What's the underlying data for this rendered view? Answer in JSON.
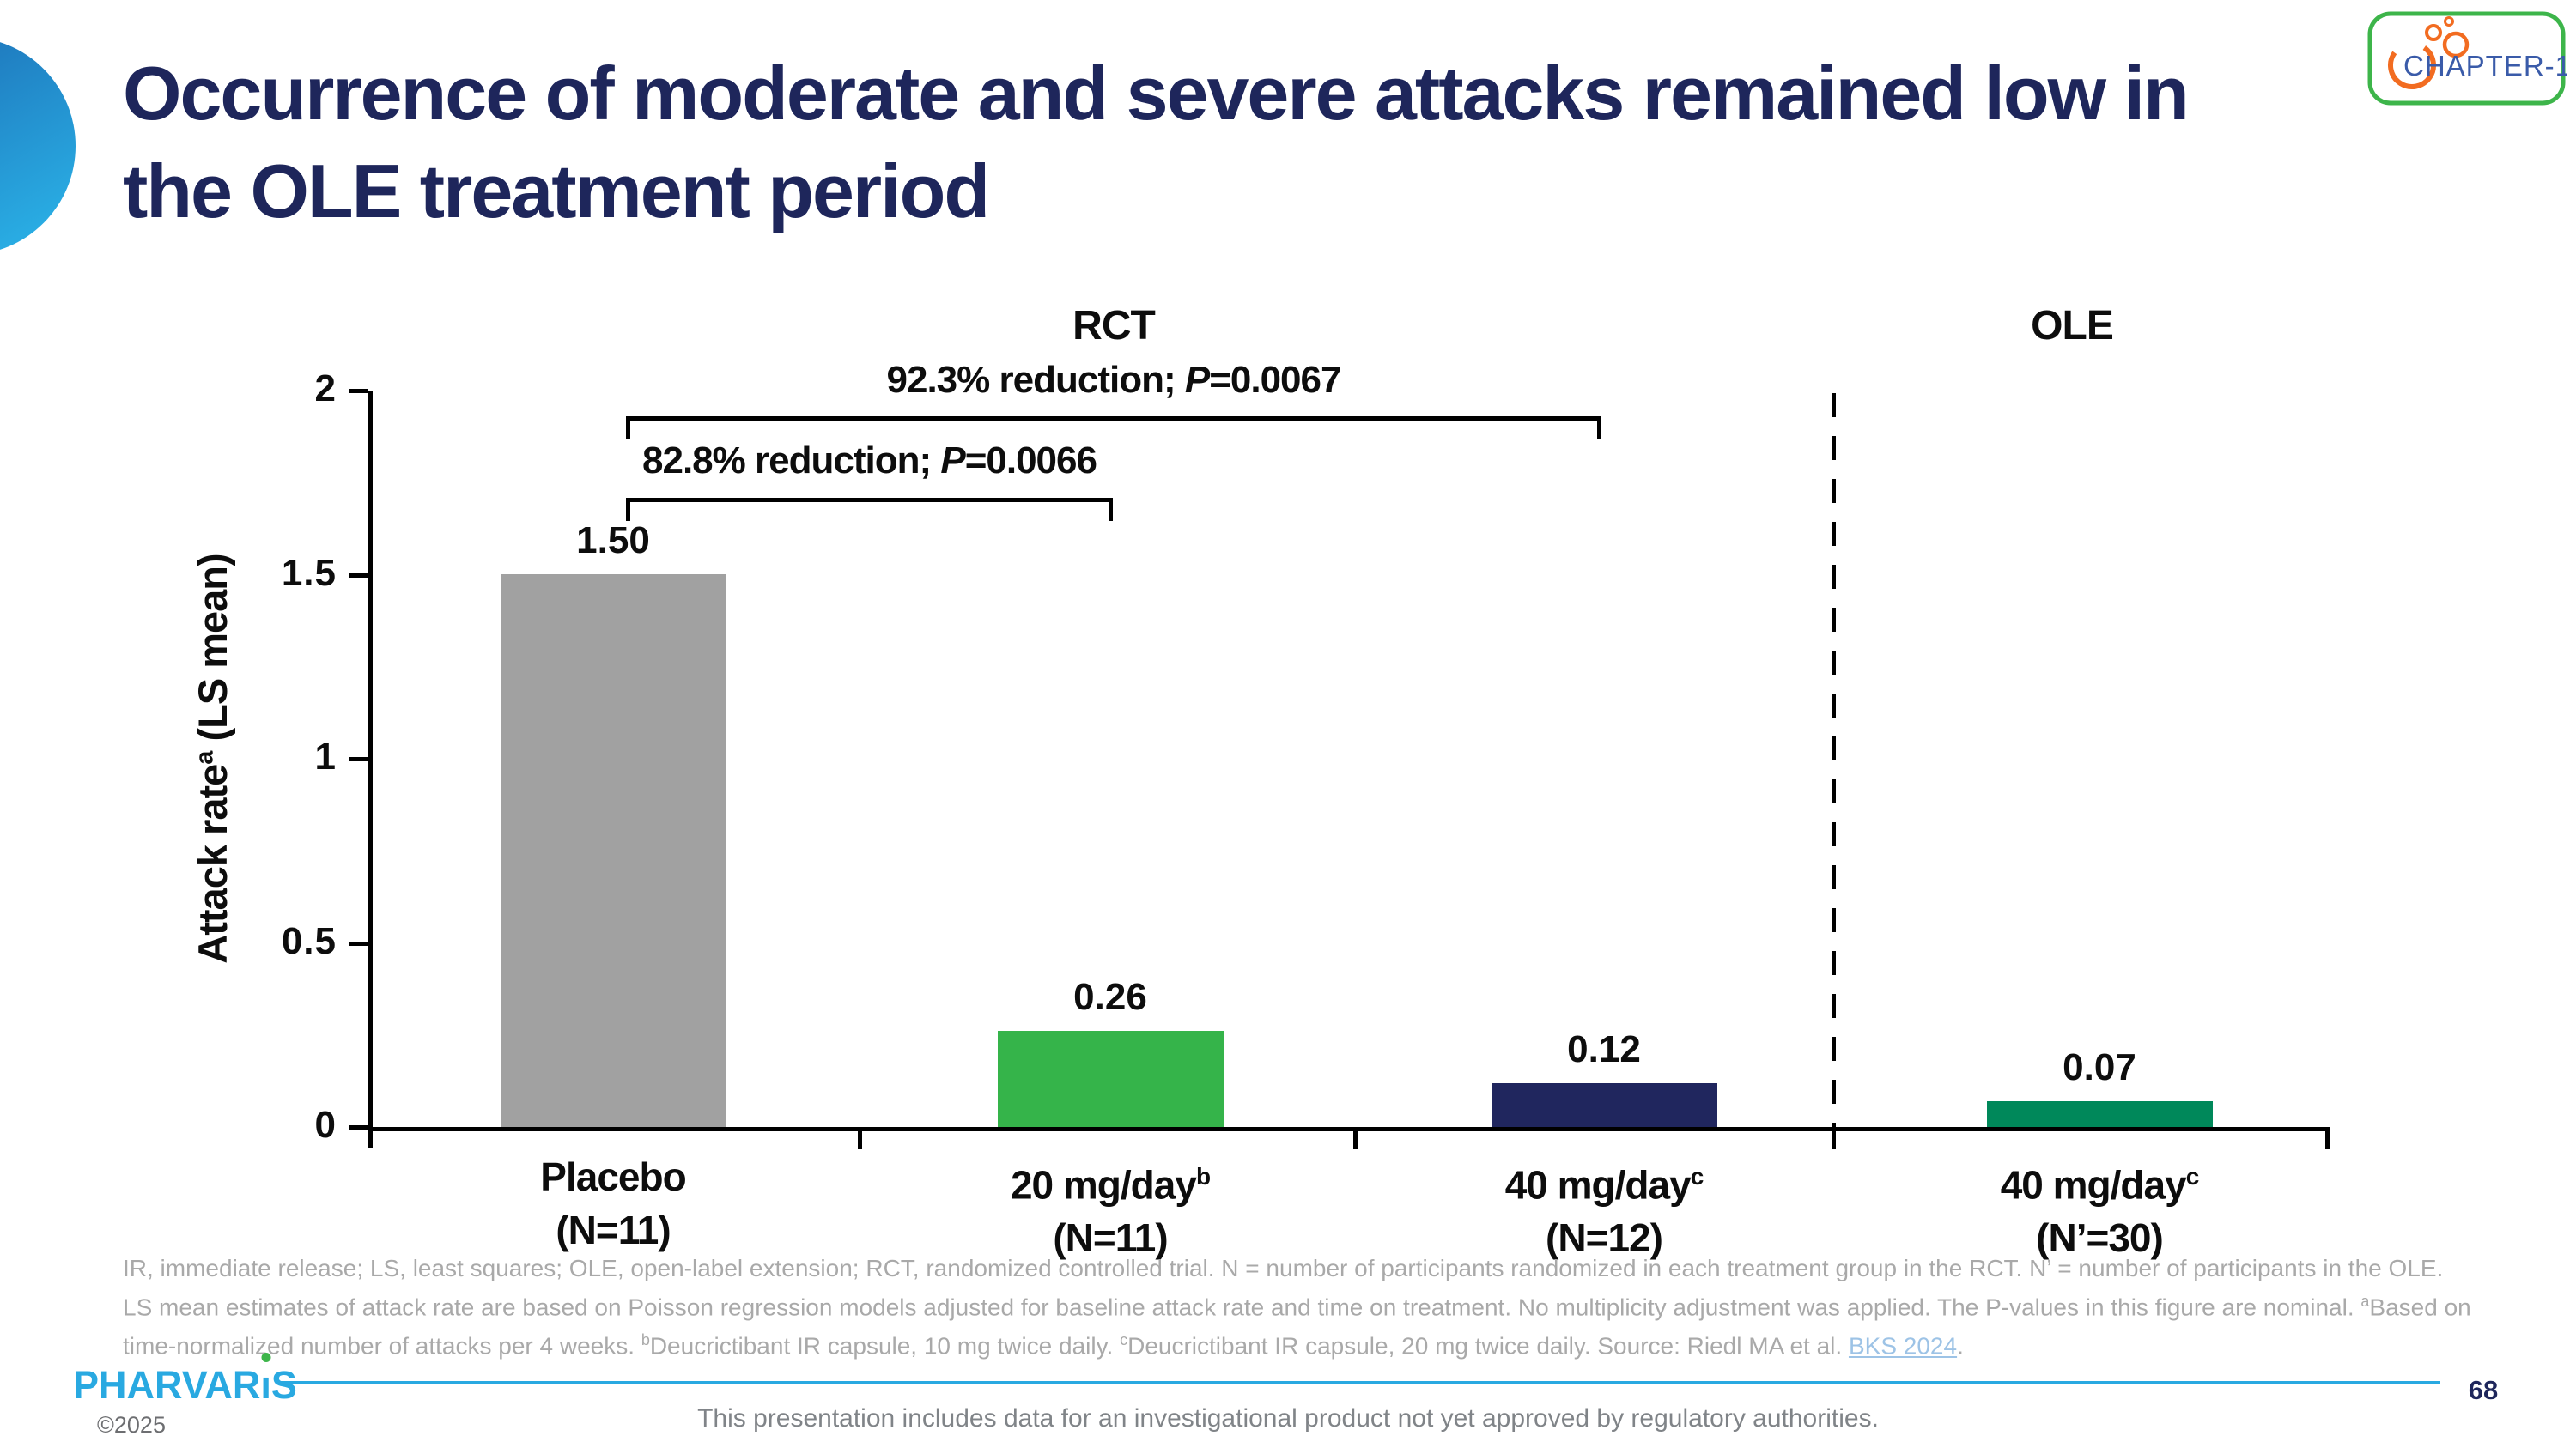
{
  "slide": {
    "title_lines": [
      "Occurrence of moderate and severe attacks remained low in",
      "the OLE treatment period"
    ],
    "title": "Occurrence of moderate and severe attacks remained low in the OLE treatment period",
    "page_number": "68",
    "copyright": "©2025",
    "disclaimer": "This presentation includes data for an investigational product not yet approved by regulatory authorities.",
    "brand": {
      "name": "PHARVARIS",
      "prefix": "PHARVAR",
      "suffix": "S",
      "i_stem": "ı"
    },
    "chapter_logo": {
      "text": "CHAPTER-1"
    },
    "colors": {
      "title_navy": "#1E265B",
      "brand_blue": "#29A9E1",
      "logo_green": "#3DB54A",
      "logo_orange": "#F26C21",
      "link_blue": "#9DC3E6"
    }
  },
  "chart_data": {
    "type": "bar",
    "title": "",
    "xlabel": "",
    "ylabel_parts": {
      "pre": "Attack rate",
      "sup": "a",
      "post": " (LS mean)"
    },
    "ylim": [
      0,
      2
    ],
    "yticks": [
      "0",
      "0.5",
      "1",
      "1.5",
      "2"
    ],
    "grid": false,
    "legend": "none",
    "group_labels": [
      "RCT",
      "OLE"
    ],
    "separator_note": "dashed vertical line between RCT and OLE sections",
    "categories": [
      {
        "label": "Placebo",
        "sup": "",
        "n_label": "(N=11)",
        "value": 1.5,
        "value_label": "1.50",
        "color": "#A1A1A1",
        "group": "RCT"
      },
      {
        "label": "20 mg/day",
        "sup": "b",
        "n_label": "(N=11)",
        "value": 0.26,
        "value_label": "0.26",
        "color": "#35B44A",
        "group": "RCT"
      },
      {
        "label": "40 mg/day",
        "sup": "c",
        "n_label": "(N=12)",
        "value": 0.12,
        "value_label": "0.12",
        "color": "#20265E",
        "group": "RCT"
      },
      {
        "label": "40 mg/day",
        "sup": "c",
        "n_label": "(N’=30)",
        "value": 0.07,
        "value_label": "0.07",
        "color": "#00885A",
        "group": "OLE"
      }
    ],
    "annotations": [
      {
        "pre": "92.3% reduction; ",
        "p": "P",
        "post": "=0.0067",
        "spans": "Placebo to 40 mg/day"
      },
      {
        "pre": "82.8% reduction; ",
        "p": "P",
        "post": "=0.0066",
        "spans": "Placebo to 20 mg/day"
      }
    ]
  },
  "footnote": {
    "segments": [
      {
        "t": "IR, immediate release; LS, least squares; OLE, open-label extension; RCT, randomized controlled trial. N = number of participants randomized in each treatment group in the RCT. N’ = number of participants in the OLE. LS mean estimates of attack rate are based on Poisson regression models adjusted for baseline attack rate and time on treatment. No multiplicity adjustment was applied. The P-values in this figure are nominal. "
      },
      {
        "sup": "a"
      },
      {
        "t": "Based on time-normalized number of attacks per 4 weeks. "
      },
      {
        "sup": "b"
      },
      {
        "t": "Deucrictibant IR capsule, 10 mg twice daily. "
      },
      {
        "sup": "c"
      },
      {
        "t": "Deucrictibant IR capsule, 20 mg twice daily. Source: Riedl MA et al. "
      },
      {
        "link": "BKS 2024"
      },
      {
        "t": "."
      }
    ]
  }
}
